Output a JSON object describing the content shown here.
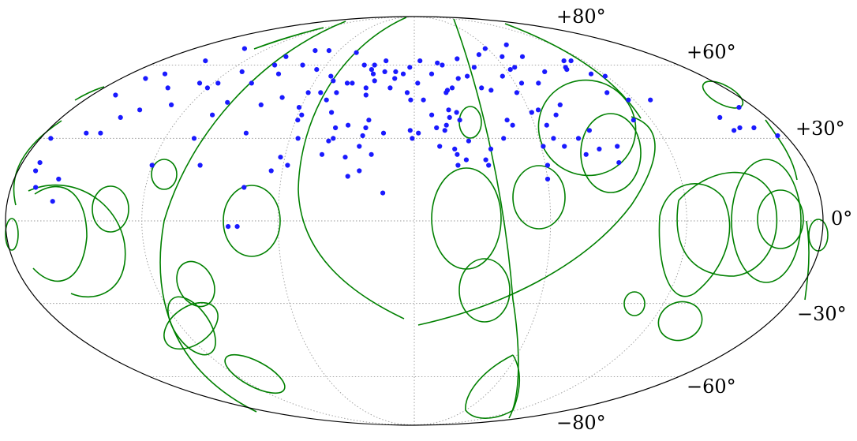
{
  "chart_data": {
    "type": "scatter",
    "projection": "Mollweide",
    "title": "",
    "grid": true,
    "lat_ticks": [
      {
        "lat": 80,
        "label": "+80°"
      },
      {
        "lat": 60,
        "label": "+60°"
      },
      {
        "lat": 30,
        "label": "+30°"
      },
      {
        "lat": 0,
        "label": "0°"
      },
      {
        "lat": -30,
        "label": "−30°"
      },
      {
        "lat": -60,
        "label": "−60°"
      },
      {
        "lat": -80,
        "label": "−80°"
      }
    ],
    "meridians_deg": [
      -120,
      -60,
      0,
      60,
      120
    ],
    "parallels_deg": [
      -60,
      -30,
      0,
      30,
      60
    ],
    "colors": {
      "points": "#1a1aff",
      "contours": "#008000",
      "grid": "#9a9a9a",
      "boundary": "#000000"
    },
    "series": [
      {
        "marker": "dot",
        "points": [
          [
            -139,
            68
          ],
          [
            -148,
            62
          ],
          [
            -158,
            56
          ],
          [
            -165,
            54
          ],
          [
            -167,
            47
          ],
          [
            -143,
            50
          ],
          [
            -128,
            52
          ],
          [
            -120,
            50
          ],
          [
            -117,
            52
          ],
          [
            -111,
            57
          ],
          [
            -95,
            60
          ],
          [
            -95,
            64
          ],
          [
            -79,
            67
          ],
          [
            -68,
            67
          ],
          [
            -45,
            66
          ],
          [
            -34,
            60
          ],
          [
            -20,
            62
          ],
          [
            -7,
            56
          ],
          [
            -3,
            59
          ],
          [
            4,
            62
          ],
          [
            11,
            56
          ],
          [
            16,
            61
          ],
          [
            19,
            60
          ],
          [
            22,
            50
          ],
          [
            18,
            48
          ],
          [
            18,
            38
          ],
          [
            23,
            37
          ],
          [
            18,
            41
          ],
          [
            9,
            39
          ],
          [
            5,
            45
          ],
          [
            2,
            52
          ],
          [
            -4,
            48
          ],
          [
            -14,
            50
          ],
          [
            -12,
            54
          ],
          [
            -19,
            57
          ],
          [
            -26,
            56
          ],
          [
            -28,
            58
          ],
          [
            -24,
            53
          ],
          [
            -28,
            50
          ],
          [
            -40,
            52
          ],
          [
            -53,
            48
          ],
          [
            -60,
            48
          ],
          [
            -64,
            58
          ],
          [
            -76,
            60
          ],
          [
            -86,
            56
          ],
          [
            -97,
            52
          ],
          [
            -101,
            44
          ],
          [
            -104,
            39
          ],
          [
            -106,
            30
          ],
          [
            -130,
            43
          ],
          [
            -144,
            41
          ],
          [
            -150,
            38
          ],
          [
            -153,
            32
          ],
          [
            -160,
            32
          ],
          [
            -175,
            30
          ],
          [
            -172,
            18
          ],
          [
            -160,
            7
          ],
          [
            -169,
            12
          ],
          [
            -172,
            21
          ],
          [
            -160,
            15
          ],
          [
            -120,
            20
          ],
          [
            -98,
            20
          ],
          [
            -82,
            32
          ],
          [
            -82,
            43
          ],
          [
            -73,
            46
          ],
          [
            -61,
            42
          ],
          [
            -58,
            39
          ],
          [
            -59,
            37
          ],
          [
            -48,
            45
          ],
          [
            -62,
            23
          ],
          [
            -56,
            30
          ],
          [
            -65,
            18
          ],
          [
            -58,
            20
          ],
          [
            -43,
            40
          ],
          [
            -37,
            52
          ],
          [
            -44,
            48
          ],
          [
            -49,
            53
          ],
          [
            -52,
            55
          ],
          [
            -27,
            47
          ],
          [
            -24,
            34
          ],
          [
            -39,
            34
          ],
          [
            -39,
            30
          ],
          [
            -33,
            35
          ],
          [
            -23,
            37
          ],
          [
            -27,
            60
          ],
          [
            -12,
            57
          ],
          [
            26,
            29
          ],
          [
            20,
            24
          ],
          [
            19,
            26
          ],
          [
            20,
            20
          ],
          [
            24,
            22
          ],
          [
            22,
            40
          ],
          [
            19,
            49
          ],
          [
            40,
            59
          ],
          [
            31,
            63
          ],
          [
            49,
            65
          ],
          [
            58,
            68
          ],
          [
            65,
            64
          ],
          [
            67,
            59
          ],
          [
            63,
            58
          ],
          [
            55,
            55
          ],
          [
            64,
            52
          ],
          [
            58,
            48
          ],
          [
            61,
            40
          ],
          [
            65,
            41
          ],
          [
            78,
            43
          ],
          [
            74,
            52
          ],
          [
            84,
            57
          ],
          [
            80,
            64
          ],
          [
            80,
            70
          ],
          [
            100,
            58
          ],
          [
            101,
            59
          ],
          [
            112,
            56
          ],
          [
            119,
            55
          ],
          [
            109,
            48
          ],
          [
            111,
            37
          ],
          [
            117,
            45
          ],
          [
            129,
            45
          ],
          [
            156,
            38
          ],
          [
            157,
            33
          ],
          [
            161,
            34
          ],
          [
            168,
            34
          ],
          [
            176,
            31
          ],
          [
            172,
            42
          ],
          [
            96,
            27
          ],
          [
            94,
            21
          ],
          [
            73,
            39
          ],
          [
            66,
            35
          ],
          [
            79,
            30
          ],
          [
            80,
            24
          ],
          [
            86,
            33
          ],
          [
            87,
            26
          ],
          [
            71,
            27
          ],
          [
            67,
            30
          ],
          [
            61,
            27
          ],
          [
            61,
            20
          ],
          [
            60,
            15
          ],
          [
            49,
            35
          ],
          [
            47,
            37
          ],
          [
            43,
            30
          ],
          [
            36,
            26
          ],
          [
            33,
            22
          ],
          [
            34,
            20
          ],
          [
            15,
            33
          ],
          [
            12,
            27
          ],
          [
            11,
            34
          ],
          [
            16,
            35
          ],
          [
            -2,
            33
          ],
          [
            -1,
            30
          ],
          [
            -15,
            32
          ],
          [
            -20,
            24
          ],
          [
            -25,
            18
          ],
          [
            -26,
            27
          ],
          [
            -30,
            16
          ],
          [
            -14,
            10
          ],
          [
            -25,
            31
          ],
          [
            -32,
            23
          ],
          [
            -41,
            29
          ],
          [
            -43,
            24
          ],
          [
            2,
            32
          ],
          [
            -76,
            12
          ],
          [
            -78,
            -2
          ],
          [
            -82,
            -2
          ],
          [
            44,
            49
          ],
          [
            39,
            50
          ],
          [
            33,
            55
          ],
          [
            27,
            54
          ],
          [
            106,
            62
          ],
          [
            111,
            62
          ],
          [
            -2,
            45
          ]
        ]
      }
    ]
  }
}
